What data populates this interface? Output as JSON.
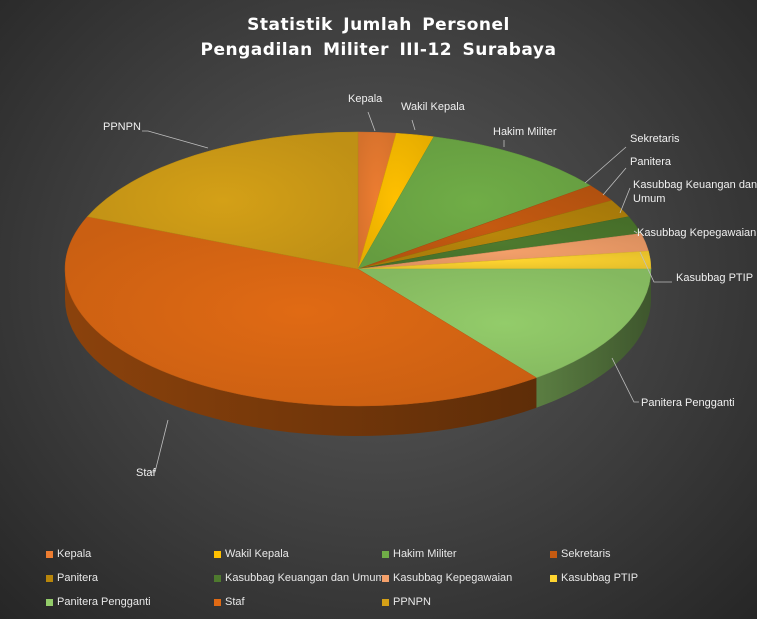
{
  "chart_data": {
    "type": "pie",
    "title": "Statistik  Jumlah  Personel",
    "subtitle": "Pengadilan  Militer  III-12  Surabaya",
    "categories": [
      "Kepala",
      "Wakil Kepala",
      "Hakim Militer",
      "Sekretaris",
      "Panitera",
      "Kasubbag Keuangan dan Umum",
      "Kasubbag Kepegawaian",
      "Kasubbag PTIP",
      "Panitera Pengganti",
      "Staf",
      "PPNPN"
    ],
    "values": [
      1,
      1,
      5,
      1,
      1,
      1,
      1,
      1,
      7,
      20,
      9
    ],
    "colors": [
      "#ED7D31",
      "#FFC000",
      "#70AD47",
      "#C55A11",
      "#B8860B",
      "#4E7A2E",
      "#F4A06A",
      "#FFD530",
      "#93CC6A",
      "#E06A14",
      "#D4A017"
    ],
    "legend_position": "bottom",
    "style": "3d-pie"
  }
}
